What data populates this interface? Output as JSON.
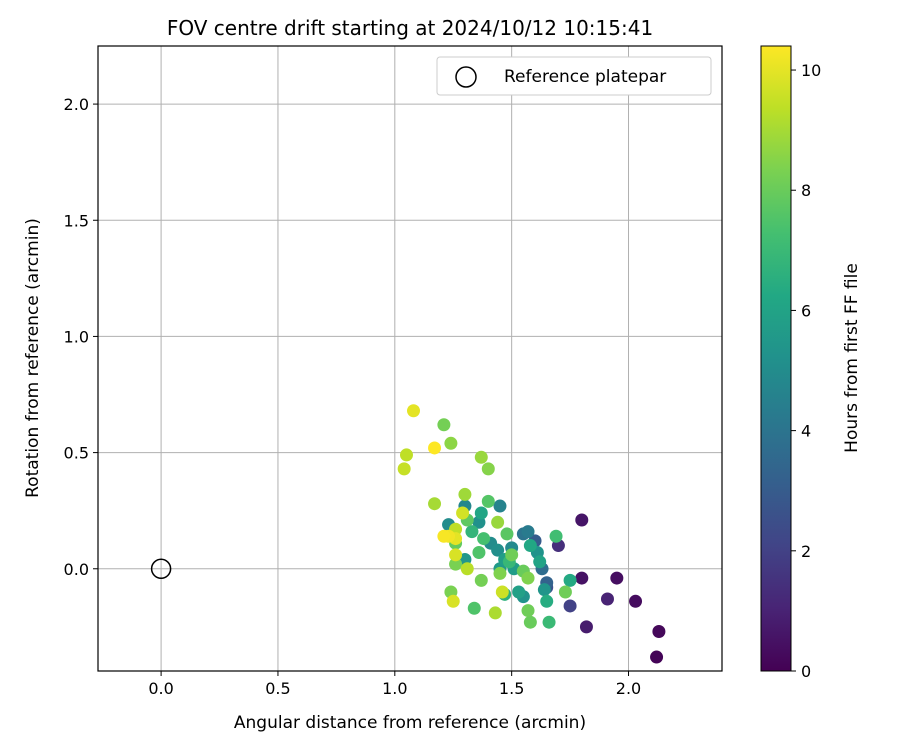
{
  "chart_data": {
    "type": "scatter",
    "title": "FOV centre drift starting at 2024/10/12 10:15:41",
    "xlabel": "Angular distance from reference (arcmin)",
    "ylabel": "Rotation from reference (arcmin)",
    "xlim": [
      -0.27,
      2.4
    ],
    "ylim": [
      -0.44,
      2.25
    ],
    "xticks": [
      0.0,
      0.5,
      1.0,
      1.5,
      2.0
    ],
    "xtick_labels": [
      "0.0",
      "0.5",
      "1.0",
      "1.5",
      "2.0"
    ],
    "yticks": [
      0.0,
      0.5,
      1.0,
      1.5,
      2.0
    ],
    "ytick_labels": [
      "0.0",
      "0.5",
      "1.0",
      "1.5",
      "2.0"
    ],
    "grid": true,
    "legend": {
      "position": "upper right",
      "entry": "Reference platepar"
    },
    "reference_point": {
      "x": 0.0,
      "y": 0.0,
      "name": "Reference platepar"
    },
    "colorbar": {
      "label": "Hours from first FF file",
      "colormap": "viridis",
      "range": [
        0,
        10.4
      ],
      "ticks": [
        0,
        2,
        4,
        6,
        8,
        10
      ],
      "tick_labels": [
        "0",
        "2",
        "4",
        "6",
        "8",
        "10"
      ]
    },
    "points": [
      {
        "x": 2.12,
        "y": -0.38,
        "h": 0.1
      },
      {
        "x": 2.13,
        "y": -0.27,
        "h": 0.2
      },
      {
        "x": 2.03,
        "y": -0.14,
        "h": 0.3
      },
      {
        "x": 1.95,
        "y": -0.04,
        "h": 0.4
      },
      {
        "x": 1.8,
        "y": -0.04,
        "h": 0.5
      },
      {
        "x": 1.8,
        "y": 0.21,
        "h": 0.6
      },
      {
        "x": 1.82,
        "y": -0.25,
        "h": 0.8
      },
      {
        "x": 1.91,
        "y": -0.13,
        "h": 1.0
      },
      {
        "x": 1.7,
        "y": 0.1,
        "h": 1.4
      },
      {
        "x": 1.75,
        "y": -0.16,
        "h": 2.0
      },
      {
        "x": 1.65,
        "y": -0.08,
        "h": 2.6
      },
      {
        "x": 1.6,
        "y": 0.12,
        "h": 3.0
      },
      {
        "x": 1.65,
        "y": -0.06,
        "h": 3.3
      },
      {
        "x": 1.63,
        "y": 0.0,
        "h": 3.7
      },
      {
        "x": 1.55,
        "y": 0.15,
        "h": 4.0
      },
      {
        "x": 1.57,
        "y": 0.16,
        "h": 4.3
      },
      {
        "x": 1.45,
        "y": 0.27,
        "h": 4.6
      },
      {
        "x": 1.3,
        "y": 0.27,
        "h": 4.8
      },
      {
        "x": 1.5,
        "y": 0.09,
        "h": 4.9
      },
      {
        "x": 1.41,
        "y": 0.11,
        "h": 5.0
      },
      {
        "x": 1.23,
        "y": 0.19,
        "h": 5.0
      },
      {
        "x": 1.44,
        "y": 0.08,
        "h": 5.1
      },
      {
        "x": 1.36,
        "y": 0.2,
        "h": 5.2
      },
      {
        "x": 1.55,
        "y": -0.12,
        "h": 5.3
      },
      {
        "x": 1.61,
        "y": 0.07,
        "h": 5.3
      },
      {
        "x": 1.64,
        "y": -0.09,
        "h": 5.4
      },
      {
        "x": 1.3,
        "y": 0.04,
        "h": 5.5
      },
      {
        "x": 1.45,
        "y": 0.0,
        "h": 5.6
      },
      {
        "x": 1.51,
        "y": 0.0,
        "h": 5.7
      },
      {
        "x": 1.47,
        "y": 0.04,
        "h": 5.8
      },
      {
        "x": 1.53,
        "y": -0.1,
        "h": 5.9
      },
      {
        "x": 1.62,
        "y": 0.03,
        "h": 6.0
      },
      {
        "x": 1.37,
        "y": 0.24,
        "h": 6.1
      },
      {
        "x": 1.58,
        "y": 0.1,
        "h": 6.2
      },
      {
        "x": 1.75,
        "y": -0.05,
        "h": 6.3
      },
      {
        "x": 1.65,
        "y": -0.14,
        "h": 6.4
      },
      {
        "x": 1.47,
        "y": -0.11,
        "h": 6.6
      },
      {
        "x": 1.33,
        "y": 0.16,
        "h": 6.8
      },
      {
        "x": 1.49,
        "y": 0.03,
        "h": 6.9
      },
      {
        "x": 1.66,
        "y": -0.23,
        "h": 7.0
      },
      {
        "x": 1.69,
        "y": 0.14,
        "h": 7.2
      },
      {
        "x": 1.38,
        "y": 0.13,
        "h": 7.3
      },
      {
        "x": 1.36,
        "y": 0.07,
        "h": 7.5
      },
      {
        "x": 1.34,
        "y": -0.17,
        "h": 7.5
      },
      {
        "x": 1.4,
        "y": 0.29,
        "h": 7.6
      },
      {
        "x": 1.48,
        "y": 0.15,
        "h": 7.7
      },
      {
        "x": 1.31,
        "y": 0.21,
        "h": 7.8
      },
      {
        "x": 1.26,
        "y": 0.11,
        "h": 7.9
      },
      {
        "x": 1.55,
        "y": -0.01,
        "h": 8.0
      },
      {
        "x": 1.58,
        "y": -0.23,
        "h": 8.0
      },
      {
        "x": 1.57,
        "y": -0.18,
        "h": 8.1
      },
      {
        "x": 1.73,
        "y": -0.1,
        "h": 8.1
      },
      {
        "x": 1.5,
        "y": 0.06,
        "h": 8.1
      },
      {
        "x": 1.37,
        "y": -0.05,
        "h": 8.2
      },
      {
        "x": 1.21,
        "y": 0.62,
        "h": 8.2
      },
      {
        "x": 1.24,
        "y": -0.1,
        "h": 8.3
      },
      {
        "x": 1.26,
        "y": 0.02,
        "h": 8.3
      },
      {
        "x": 1.45,
        "y": -0.02,
        "h": 8.4
      },
      {
        "x": 1.57,
        "y": -0.04,
        "h": 8.4
      },
      {
        "x": 1.4,
        "y": 0.43,
        "h": 8.5
      },
      {
        "x": 1.24,
        "y": 0.54,
        "h": 8.6
      },
      {
        "x": 1.37,
        "y": 0.48,
        "h": 8.8
      },
      {
        "x": 1.44,
        "y": 0.2,
        "h": 8.8
      },
      {
        "x": 1.3,
        "y": 0.32,
        "h": 8.9
      },
      {
        "x": 1.17,
        "y": 0.28,
        "h": 9.0
      },
      {
        "x": 1.43,
        "y": -0.19,
        "h": 9.1
      },
      {
        "x": 1.31,
        "y": 0.0,
        "h": 9.3
      },
      {
        "x": 1.26,
        "y": 0.17,
        "h": 9.4
      },
      {
        "x": 1.05,
        "y": 0.49,
        "h": 9.4
      },
      {
        "x": 1.04,
        "y": 0.43,
        "h": 9.5
      },
      {
        "x": 1.46,
        "y": -0.1,
        "h": 9.6
      },
      {
        "x": 1.29,
        "y": 0.24,
        "h": 9.7
      },
      {
        "x": 1.26,
        "y": 0.06,
        "h": 9.8
      },
      {
        "x": 1.25,
        "y": -0.14,
        "h": 9.8
      },
      {
        "x": 1.26,
        "y": 0.13,
        "h": 10.0
      },
      {
        "x": 1.08,
        "y": 0.68,
        "h": 10.0
      },
      {
        "x": 1.23,
        "y": 0.14,
        "h": 10.2
      },
      {
        "x": 1.21,
        "y": 0.14,
        "h": 10.3
      },
      {
        "x": 1.17,
        "y": 0.52,
        "h": 10.4
      }
    ]
  }
}
